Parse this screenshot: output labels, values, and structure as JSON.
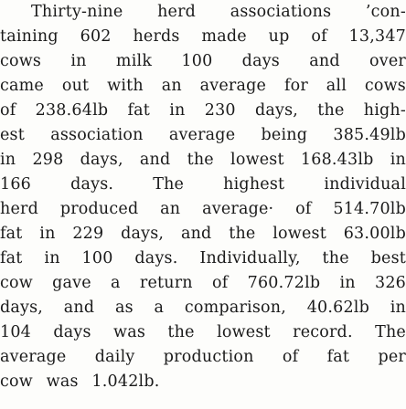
{
  "article": {
    "lines": [
      "Thirty-nine herd associations ’con-",
      "taining 602 herds made up of 13,347",
      "cows in milk 100 days and over",
      "came out with an average for all cows",
      "of 238.64lb fat in 230 days, the high-",
      "est association average being 385.49lb",
      "in 298 days, and the lowest 168.43lb in",
      "166 days. The highest individual",
      "herd produced an average· of 514.70lb",
      "fat in 229 days, and the lowest 63.00lb",
      "fat in 100 days. Individually, the best",
      "cow gave a return of 760.72lb in 326",
      "days, and as a comparison, 40.62lb in",
      "104 days was the lowest record. The",
      "average daily production of fat per",
      "cow was 1.042lb."
    ]
  }
}
